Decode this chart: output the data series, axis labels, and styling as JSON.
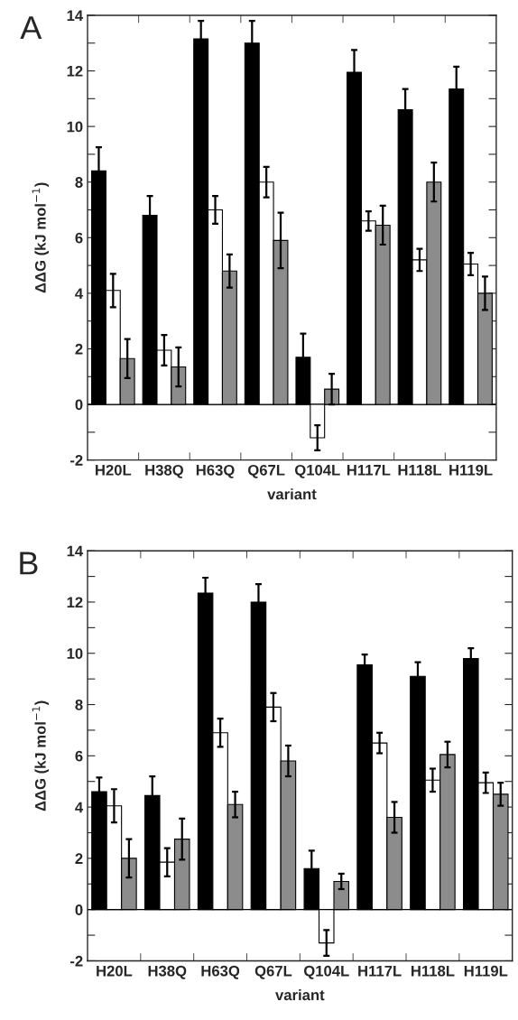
{
  "chart_data": [
    {
      "type": "bar",
      "title": "A",
      "xlabel": "variant",
      "ylabel": "ΔΔG (kJ mol$^{−1}$)",
      "categories": [
        "H20L",
        "H38Q",
        "H63Q",
        "Q67L",
        "Q104L",
        "H117L",
        "H118L",
        "H119L"
      ],
      "series": [
        {
          "color": "#000000",
          "values": [
            8.4,
            6.8,
            13.15,
            13.0,
            1.7,
            11.95,
            10.6,
            11.35
          ],
          "errors": [
            0.85,
            0.7,
            0.65,
            0.8,
            0.85,
            0.8,
            0.75,
            0.8
          ]
        },
        {
          "color": "#ffffff",
          "values": [
            4.1,
            1.95,
            7.0,
            8.0,
            -1.2,
            6.6,
            5.2,
            5.05
          ],
          "errors": [
            0.6,
            0.55,
            0.5,
            0.55,
            0.45,
            0.35,
            0.4,
            0.4
          ]
        },
        {
          "color": "#8c8c8c",
          "values": [
            1.65,
            1.35,
            4.8,
            5.9,
            0.55,
            6.45,
            8.0,
            4.0
          ],
          "errors": [
            0.7,
            0.7,
            0.6,
            1.0,
            0.55,
            0.7,
            0.7,
            0.6
          ]
        }
      ],
      "ylim": [
        -2,
        14
      ],
      "yticks": [
        -2,
        {
          "value": -1,
          "label": null
        },
        0,
        {
          "value": 1,
          "label": null
        },
        2,
        {
          "value": 3,
          "label": null
        },
        4,
        {
          "value": 5,
          "label": null
        },
        6,
        {
          "value": 7,
          "label": null
        },
        8,
        {
          "value": 9,
          "label": null
        },
        10,
        {
          "value": 11,
          "label": null
        },
        12,
        {
          "value": 13,
          "label": null
        },
        14
      ],
      "ref_lines": [
        {
          "axis": "y",
          "value": 0,
          "label": null,
          "color": "#000000"
        }
      ],
      "grid": false,
      "legend": false
    },
    {
      "type": "bar",
      "title": "B",
      "xlabel": "variant",
      "ylabel": "ΔΔG (kJ mol$^{−1}$)",
      "categories": [
        "H20L",
        "H38Q",
        "H63Q",
        "Q67L",
        "Q104L",
        "H117L",
        "H118L",
        "H119L"
      ],
      "series": [
        {
          "color": "#000000",
          "values": [
            4.6,
            4.45,
            12.35,
            12.0,
            1.6,
            9.55,
            9.1,
            9.8
          ],
          "errors": [
            0.55,
            0.75,
            0.6,
            0.7,
            0.7,
            0.4,
            0.55,
            0.4
          ]
        },
        {
          "color": "#ffffff",
          "values": [
            4.05,
            1.85,
            6.9,
            7.9,
            -1.3,
            6.5,
            5.05,
            4.95
          ],
          "errors": [
            0.65,
            0.55,
            0.55,
            0.55,
            0.5,
            0.4,
            0.45,
            0.4
          ]
        },
        {
          "color": "#8c8c8c",
          "values": [
            2.0,
            2.75,
            4.1,
            5.8,
            1.1,
            3.6,
            6.05,
            4.5
          ],
          "errors": [
            0.75,
            0.8,
            0.5,
            0.6,
            0.3,
            0.6,
            0.5,
            0.45
          ]
        }
      ],
      "ylim": [
        -2,
        14
      ],
      "yticks": [
        -2,
        {
          "value": -1,
          "label": null
        },
        0,
        {
          "value": 1,
          "label": null
        },
        2,
        {
          "value": 3,
          "label": null
        },
        4,
        {
          "value": 5,
          "label": null
        },
        6,
        {
          "value": 7,
          "label": null
        },
        8,
        {
          "value": 9,
          "label": null
        },
        10,
        {
          "value": 11,
          "label": null
        },
        12,
        {
          "value": 13,
          "label": null
        },
        14
      ],
      "ref_lines": [
        {
          "axis": "y",
          "value": 0,
          "label": null,
          "color": "#000000"
        }
      ],
      "grid": false,
      "legend": false
    }
  ]
}
